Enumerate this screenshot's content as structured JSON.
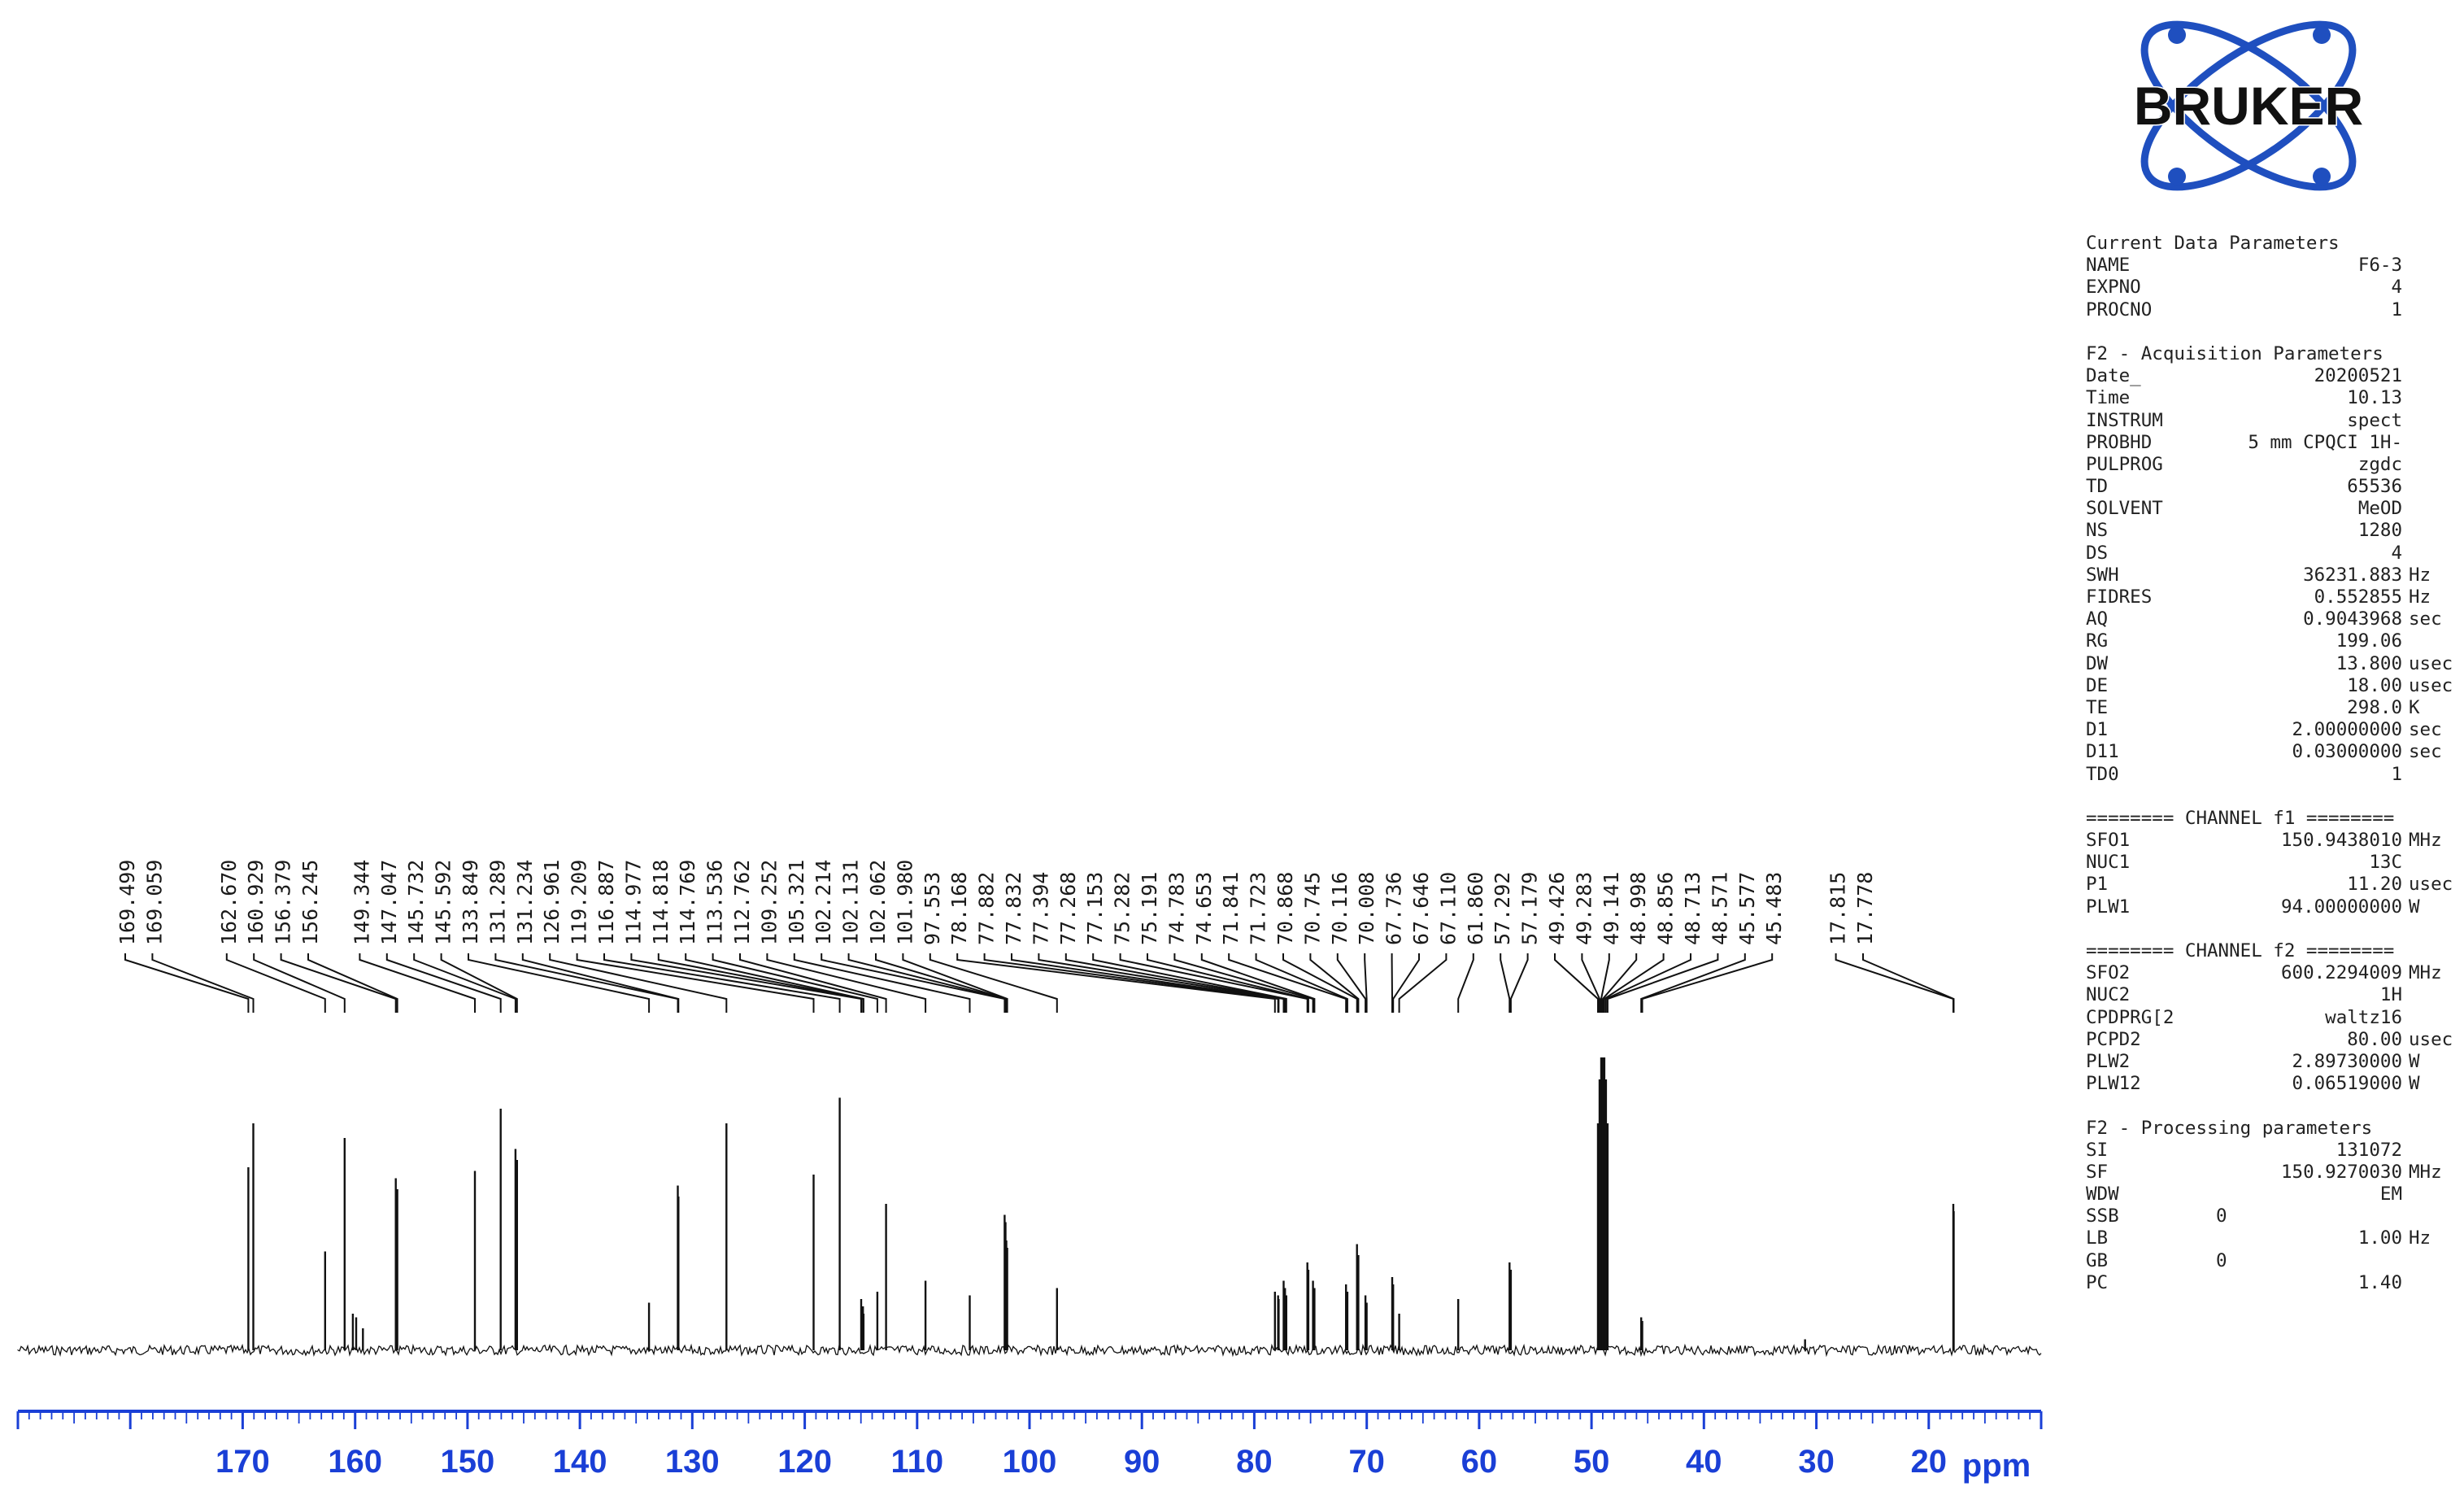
{
  "brand": {
    "name": "BRUKER",
    "logo_color": "#1f4fbf"
  },
  "chart_data": {
    "type": "line",
    "title": "",
    "xlabel": "ppm",
    "xlim": [
      190,
      10
    ],
    "x_reversed": true,
    "x_ticks": [
      170,
      160,
      150,
      140,
      130,
      120,
      110,
      100,
      90,
      80,
      70,
      60,
      50,
      40,
      30,
      20
    ],
    "axis_color": "#1a3fd6",
    "peak_labels": [
      "169.499",
      "169.059",
      "162.670",
      "160.929",
      "156.379",
      "156.245",
      "149.344",
      "147.047",
      "145.732",
      "145.592",
      "133.849",
      "131.289",
      "131.234",
      "126.961",
      "119.209",
      "116.887",
      "114.977",
      "114.818",
      "114.769",
      "113.536",
      "112.762",
      "109.252",
      "105.321",
      "102.214",
      "102.131",
      "102.062",
      "101.980",
      "97.553",
      "78.168",
      "77.882",
      "77.832",
      "77.394",
      "77.268",
      "77.153",
      "75.282",
      "75.191",
      "74.783",
      "74.653",
      "71.841",
      "71.723",
      "70.868",
      "70.745",
      "70.116",
      "70.008",
      "67.736",
      "67.646",
      "67.110",
      "61.860",
      "57.292",
      "57.179",
      "49.426",
      "49.283",
      "49.141",
      "48.998",
      "48.856",
      "48.713",
      "48.571",
      "45.577",
      "45.483",
      "17.815",
      "17.778"
    ],
    "peaks": [
      {
        "ppm": 169.499,
        "intensity": 0.5
      },
      {
        "ppm": 169.059,
        "intensity": 0.62
      },
      {
        "ppm": 162.67,
        "intensity": 0.27
      },
      {
        "ppm": 160.929,
        "intensity": 0.58
      },
      {
        "ppm": 160.2,
        "intensity": 0.1
      },
      {
        "ppm": 159.9,
        "intensity": 0.09
      },
      {
        "ppm": 159.3,
        "intensity": 0.06
      },
      {
        "ppm": 156.379,
        "intensity": 0.47
      },
      {
        "ppm": 156.245,
        "intensity": 0.44
      },
      {
        "ppm": 149.344,
        "intensity": 0.49
      },
      {
        "ppm": 147.047,
        "intensity": 0.66
      },
      {
        "ppm": 145.732,
        "intensity": 0.55
      },
      {
        "ppm": 145.592,
        "intensity": 0.52
      },
      {
        "ppm": 133.849,
        "intensity": 0.13
      },
      {
        "ppm": 131.289,
        "intensity": 0.45
      },
      {
        "ppm": 131.234,
        "intensity": 0.42
      },
      {
        "ppm": 126.961,
        "intensity": 0.62
      },
      {
        "ppm": 119.209,
        "intensity": 0.48
      },
      {
        "ppm": 116.887,
        "intensity": 0.69
      },
      {
        "ppm": 114.977,
        "intensity": 0.14
      },
      {
        "ppm": 114.818,
        "intensity": 0.12
      },
      {
        "ppm": 114.769,
        "intensity": 0.1
      },
      {
        "ppm": 113.536,
        "intensity": 0.16
      },
      {
        "ppm": 112.762,
        "intensity": 0.4
      },
      {
        "ppm": 109.252,
        "intensity": 0.19
      },
      {
        "ppm": 105.321,
        "intensity": 0.15
      },
      {
        "ppm": 102.214,
        "intensity": 0.37
      },
      {
        "ppm": 102.131,
        "intensity": 0.35
      },
      {
        "ppm": 102.062,
        "intensity": 0.3
      },
      {
        "ppm": 101.98,
        "intensity": 0.28
      },
      {
        "ppm": 97.553,
        "intensity": 0.17
      },
      {
        "ppm": 78.168,
        "intensity": 0.16
      },
      {
        "ppm": 77.882,
        "intensity": 0.15
      },
      {
        "ppm": 77.832,
        "intensity": 0.14
      },
      {
        "ppm": 77.394,
        "intensity": 0.19
      },
      {
        "ppm": 77.268,
        "intensity": 0.17
      },
      {
        "ppm": 77.153,
        "intensity": 0.15
      },
      {
        "ppm": 75.282,
        "intensity": 0.24
      },
      {
        "ppm": 75.191,
        "intensity": 0.22
      },
      {
        "ppm": 74.783,
        "intensity": 0.19
      },
      {
        "ppm": 74.653,
        "intensity": 0.17
      },
      {
        "ppm": 71.841,
        "intensity": 0.18
      },
      {
        "ppm": 71.723,
        "intensity": 0.16
      },
      {
        "ppm": 70.868,
        "intensity": 0.29
      },
      {
        "ppm": 70.745,
        "intensity": 0.26
      },
      {
        "ppm": 70.116,
        "intensity": 0.15
      },
      {
        "ppm": 70.008,
        "intensity": 0.13
      },
      {
        "ppm": 67.736,
        "intensity": 0.2
      },
      {
        "ppm": 67.646,
        "intensity": 0.18
      },
      {
        "ppm": 67.11,
        "intensity": 0.1
      },
      {
        "ppm": 61.86,
        "intensity": 0.14
      },
      {
        "ppm": 57.292,
        "intensity": 0.24
      },
      {
        "ppm": 57.179,
        "intensity": 0.22
      },
      {
        "ppm": 49.426,
        "intensity": 0.62
      },
      {
        "ppm": 49.283,
        "intensity": 0.74
      },
      {
        "ppm": 49.141,
        "intensity": 0.8
      },
      {
        "ppm": 48.998,
        "intensity": 0.8
      },
      {
        "ppm": 48.856,
        "intensity": 0.8
      },
      {
        "ppm": 48.713,
        "intensity": 0.74
      },
      {
        "ppm": 48.571,
        "intensity": 0.62
      },
      {
        "ppm": 45.577,
        "intensity": 0.09
      },
      {
        "ppm": 45.483,
        "intensity": 0.08
      },
      {
        "ppm": 31.0,
        "intensity": 0.03
      },
      {
        "ppm": 17.815,
        "intensity": 0.4
      },
      {
        "ppm": 17.778,
        "intensity": 0.38
      }
    ]
  },
  "parameters": {
    "sections": [
      {
        "title": "Current Data Parameters",
        "rows": [
          {
            "k": "NAME",
            "v": "F6-3",
            "u": ""
          },
          {
            "k": "EXPNO",
            "v": "4",
            "u": ""
          },
          {
            "k": "PROCNO",
            "v": "1",
            "u": ""
          }
        ]
      },
      {
        "title": "F2 - Acquisition Parameters",
        "rows": [
          {
            "k": "Date_",
            "v": "20200521",
            "u": ""
          },
          {
            "k": "Time",
            "v": "10.13",
            "u": ""
          },
          {
            "k": "INSTRUM",
            "v": "spect",
            "u": ""
          },
          {
            "k": "PROBHD",
            "v": "5 mm CPQCI 1H-",
            "u": ""
          },
          {
            "k": "PULPROG",
            "v": "zgdc",
            "u": ""
          },
          {
            "k": "TD",
            "v": "65536",
            "u": ""
          },
          {
            "k": "SOLVENT",
            "v": "MeOD",
            "u": ""
          },
          {
            "k": "NS",
            "v": "1280",
            "u": ""
          },
          {
            "k": "DS",
            "v": "4",
            "u": ""
          },
          {
            "k": "SWH",
            "v": "36231.883",
            "u": "Hz"
          },
          {
            "k": "FIDRES",
            "v": "0.552855",
            "u": "Hz"
          },
          {
            "k": "AQ",
            "v": "0.9043968",
            "u": "sec"
          },
          {
            "k": "RG",
            "v": "199.06",
            "u": ""
          },
          {
            "k": "DW",
            "v": "13.800",
            "u": "usec"
          },
          {
            "k": "DE",
            "v": "18.00",
            "u": "usec"
          },
          {
            "k": "TE",
            "v": "298.0",
            "u": "K"
          },
          {
            "k": "D1",
            "v": "2.00000000",
            "u": "sec"
          },
          {
            "k": "D11",
            "v": "0.03000000",
            "u": "sec"
          },
          {
            "k": "TD0",
            "v": "1",
            "u": ""
          }
        ]
      },
      {
        "title": "======== CHANNEL f1 ========",
        "rows": [
          {
            "k": "SFO1",
            "v": "150.9438010",
            "u": "MHz"
          },
          {
            "k": "NUC1",
            "v": "13C",
            "u": ""
          },
          {
            "k": "P1",
            "v": "11.20",
            "u": "usec"
          },
          {
            "k": "PLW1",
            "v": "94.00000000",
            "u": "W"
          }
        ]
      },
      {
        "title": "======== CHANNEL f2 ========",
        "rows": [
          {
            "k": "SFO2",
            "v": "600.2294009",
            "u": "MHz"
          },
          {
            "k": "NUC2",
            "v": "1H",
            "u": ""
          },
          {
            "k": "CPDPRG[2",
            "v": "waltz16",
            "u": ""
          },
          {
            "k": "PCPD2",
            "v": "80.00",
            "u": "usec"
          },
          {
            "k": "PLW2",
            "v": "2.89730000",
            "u": "W"
          },
          {
            "k": "PLW12",
            "v": "0.06519000",
            "u": "W"
          }
        ]
      },
      {
        "title": "F2 - Processing parameters",
        "rows": [
          {
            "k": "SI",
            "v": "131072",
            "u": ""
          },
          {
            "k": "SF",
            "v": "150.9270030",
            "u": "MHz"
          },
          {
            "k": "WDW",
            "v": "EM",
            "u": ""
          },
          {
            "k": "SSB",
            "v": "0",
            "u": "",
            "left": true
          },
          {
            "k": "LB",
            "v": "1.00",
            "u": "Hz"
          },
          {
            "k": "GB",
            "v": "0",
            "u": "",
            "left": true
          },
          {
            "k": "PC",
            "v": "1.40",
            "u": ""
          }
        ]
      }
    ]
  }
}
